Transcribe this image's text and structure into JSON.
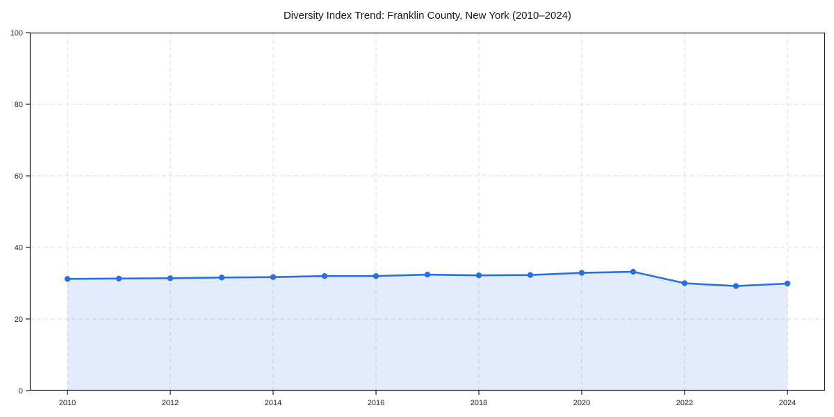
{
  "chart_data": {
    "type": "line",
    "title": "Diversity Index Trend: Franklin County, New York (2010–2024)",
    "xlabel": "",
    "ylabel": "",
    "x": [
      2010,
      2011,
      2012,
      2013,
      2014,
      2015,
      2016,
      2017,
      2018,
      2019,
      2020,
      2021,
      2022,
      2023,
      2024
    ],
    "values": [
      31.2,
      31.3,
      31.4,
      31.6,
      31.7,
      32.0,
      32.0,
      32.4,
      32.2,
      32.3,
      32.9,
      33.2,
      30.0,
      29.2,
      29.9
    ],
    "ylim": [
      0,
      100
    ],
    "yticks": [
      0,
      20,
      40,
      60,
      80,
      100
    ],
    "xticks": [
      2010,
      2012,
      2014,
      2016,
      2018,
      2020,
      2022,
      2024
    ],
    "grid": "dashed",
    "legend": "none",
    "area_fill": true,
    "colors": {
      "line": "#2a6fe2",
      "marker": "#2a6fe2",
      "fill": "rgba(42, 111, 226, 0.13)",
      "grid": "#dcdcdc",
      "axis": "#1a1a1a",
      "tick_text": "#262626",
      "background": "#ffffff"
    }
  }
}
